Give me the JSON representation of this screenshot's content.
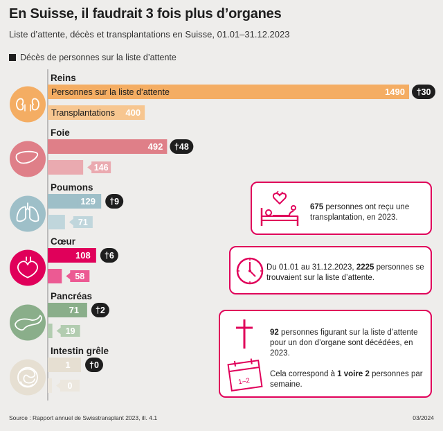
{
  "title": "En Suisse, il faudrait 3 fois plus d’organes",
  "subtitle": "Liste d’attente, décès et transplantations en Suisse, 01.01–31.12.2023",
  "legend_deaths": "Décès de personnes sur la liste d’attente",
  "source": "Source : Rapport annuel de Swisstransplant 2023, ill. 4.1",
  "date": "03/2024",
  "colors": {
    "accent": "#e0005a",
    "dark": "#1e1e1e",
    "bg": "#eeedeb"
  },
  "chart_data": {
    "type": "bar",
    "title": "En Suisse, il faudrait 3 fois plus d’organes",
    "series_labels": {
      "waiting": "Personnes sur la liste d’attente",
      "transplants": "Transplantations",
      "deaths": "Décès de personnes sur la liste d’attente"
    },
    "categories": [
      {
        "name": "Reins",
        "waiting": 1490,
        "transplants": 400,
        "deaths": 30,
        "icon": "kidney-icon",
        "c1": "#f4ad63",
        "c2": "#f7c690",
        "circle": "#f4ad63"
      },
      {
        "name": "Foie",
        "waiting": 492,
        "transplants": 146,
        "deaths": 48,
        "icon": "liver-icon",
        "c1": "#df7f88",
        "c2": "#eaaab0",
        "circle": "#df7f88"
      },
      {
        "name": "Poumons",
        "waiting": 129,
        "transplants": 71,
        "deaths": 9,
        "icon": "lungs-icon",
        "c1": "#9ebfc8",
        "c2": "#c0d6dc",
        "circle": "#9ebfc8"
      },
      {
        "name": "Cœur",
        "waiting": 108,
        "transplants": 58,
        "deaths": 6,
        "icon": "heart-icon",
        "c1": "#e0005a",
        "c2": "#ec5a93",
        "circle": "#e0005a"
      },
      {
        "name": "Pancréas",
        "waiting": 71,
        "transplants": 19,
        "deaths": 2,
        "icon": "pancreas-icon",
        "c1": "#8aae8a",
        "c2": "#b2ccb0",
        "circle": "#8aae8a"
      },
      {
        "name": "Intestin grêle",
        "waiting": 1,
        "transplants": 0,
        "deaths": 0,
        "icon": "intestine-icon",
        "c1": "#e6dfd2",
        "c2": "#ece7de",
        "circle": "#e6dfd2"
      }
    ],
    "death_prefix": "†",
    "scale_max": 1490
  },
  "callouts": {
    "transplant": {
      "num": "675",
      "text": " personnes ont reçu une transplantation, en 2023."
    },
    "waiting": {
      "pre": "Du 01.01 au 31.12.2023, ",
      "num": "2225",
      "text": " personnes se trouvaient sur la liste d’attente."
    },
    "deaths": {
      "num": "92",
      "text": " personnes figurant sur la liste d’attente pour un don d’organe sont décédées, en 2023."
    },
    "week": {
      "pre": "Cela correspond à ",
      "num": "1 voire 2",
      "text": " personnes par semaine.",
      "calendar_label": "1–2"
    }
  }
}
